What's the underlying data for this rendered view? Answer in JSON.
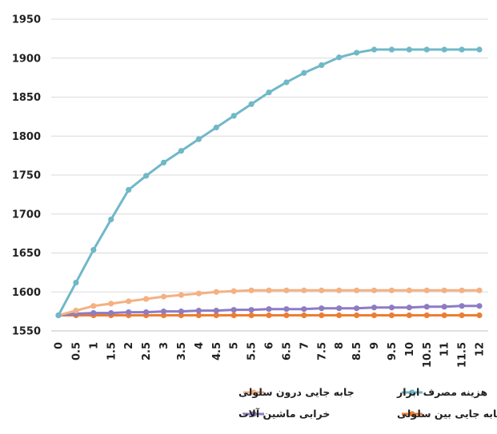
{
  "chart_data": {
    "type": "line",
    "title": "",
    "xlabel": "",
    "ylabel": "",
    "x": [
      "0",
      "0.5",
      "1",
      "1.5",
      "2",
      "2.5",
      "3",
      "3.5",
      "4",
      "4.5",
      "5",
      "5.5",
      "6",
      "6.5",
      "7",
      "7.5",
      "8",
      "8.5",
      "9",
      "9.5",
      "10",
      "10.5",
      "11",
      "11.5",
      "12"
    ],
    "ylim": [
      1550,
      1950
    ],
    "yticks": [
      1550,
      1600,
      1650,
      1700,
      1750,
      1800,
      1850,
      1900,
      1950
    ],
    "grid": "horizontal",
    "legend_position": "bottom",
    "series": [
      {
        "name": "جابه جایی درون سلولی",
        "color": "#F4B183",
        "values": [
          1570,
          1576,
          1582,
          1585,
          1588,
          1591,
          1594,
          1596,
          1598,
          1600,
          1601,
          1602,
          1602,
          1602,
          1602,
          1602,
          1602,
          1602,
          1602,
          1602,
          1602,
          1602,
          1602,
          1602,
          1602
        ]
      },
      {
        "name": "هزینه مصرف ابزار",
        "color": "#70B8C8",
        "values": [
          1570,
          1612,
          1654,
          1693,
          1731,
          1749,
          1766,
          1781,
          1796,
          1811,
          1826,
          1841,
          1856,
          1869,
          1881,
          1891,
          1901,
          1907,
          1911,
          1911,
          1911,
          1911,
          1911,
          1911,
          1911
        ]
      },
      {
        "name": "خرابی ماشین آلات",
        "color": "#8E7CC3",
        "values": [
          1570,
          1572,
          1573,
          1573,
          1574,
          1574,
          1575,
          1575,
          1576,
          1576,
          1577,
          1577,
          1578,
          1578,
          1578,
          1579,
          1579,
          1579,
          1580,
          1580,
          1580,
          1581,
          1581,
          1582,
          1582
        ]
      },
      {
        "name": "جابه جایی بین سلولی",
        "color": "#ED7D31",
        "values": [
          1570,
          1570,
          1570,
          1570,
          1570,
          1570,
          1570,
          1570,
          1570,
          1570,
          1570,
          1570,
          1570,
          1570,
          1570,
          1570,
          1570,
          1570,
          1570,
          1570,
          1570,
          1570,
          1570,
          1570,
          1570
        ]
      }
    ],
    "legend_order": [
      0,
      1,
      2,
      3
    ]
  },
  "colors": {
    "gridline": "#D9D9D9",
    "axis": "#BFBFBF",
    "text": "#222222"
  }
}
